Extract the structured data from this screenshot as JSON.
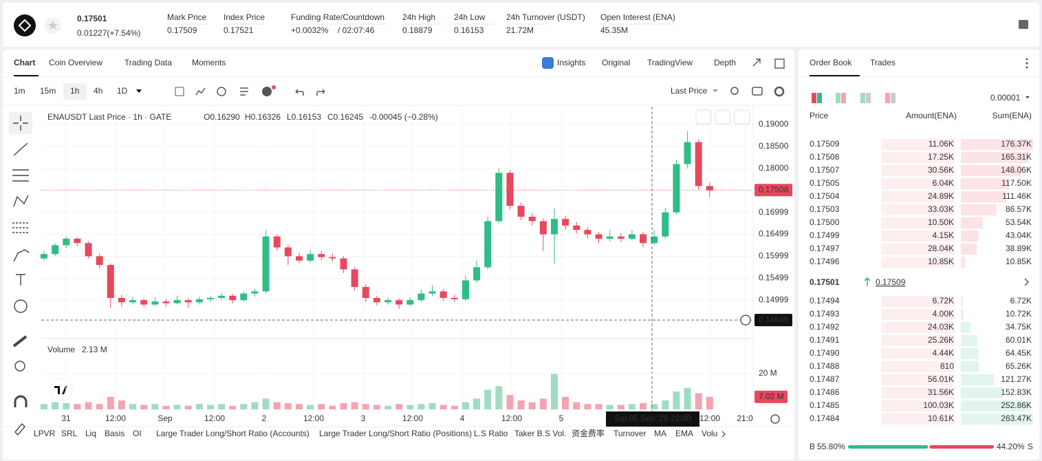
{
  "header": {
    "price": "0.17501",
    "change": "0.01227(+7.54%)",
    "stats": [
      {
        "label": "Mark Price",
        "value": "0.17509"
      },
      {
        "label": "Index Price",
        "value": "0.17521"
      },
      {
        "label": "Funding Rate/Countdown",
        "value": "+0.0032%",
        "extra": "/ 02:07:46"
      },
      {
        "label": "24h High",
        "value": "0.18879"
      },
      {
        "label": "24h Low",
        "value": "0.16153"
      },
      {
        "label": "24h Turnover (USDT)",
        "value": "21.72M"
      },
      {
        "label": "Open Interest (ENA)",
        "value": "45.35M"
      }
    ]
  },
  "tabs": [
    "Chart",
    "Coin Overview",
    "Trading Data",
    "Moments"
  ],
  "views": [
    "Insights",
    "Original",
    "TradingView",
    "Depth"
  ],
  "intervals": [
    "1m",
    "15m",
    "1h",
    "4h",
    "1D"
  ],
  "price_source": "Last Price",
  "price_chart": {
    "type": "candlestick",
    "legend": {
      "symbol": "ENAUSDT Last Price · 1h · GATE",
      "open": "O0.16290",
      "high": "H0.16326",
      "low": "L0.16153",
      "close": "C0.16245",
      "change": "-0.00045 (−0.28%)"
    },
    "ylim": [
      0.14125,
      0.1933
    ],
    "yticks": [
      {
        "value": 0.19,
        "label": "0.19000"
      },
      {
        "value": 0.185,
        "label": "0.18500"
      },
      {
        "value": 0.18,
        "label": "0.18000"
      },
      0.16999,
      0.16499,
      0.15999,
      0.15499,
      0.14999
    ],
    "last_price": {
      "value": 0.17508,
      "label": "0.17508"
    },
    "cursor_price": 0.14546,
    "cursor_time": "Sat 05 Sep '26   22:00",
    "xlim": [
      0,
      172.5
    ],
    "xticks": [
      {
        "value": 6,
        "label": "31"
      },
      {
        "value": 18,
        "label": "12:00"
      },
      {
        "value": 30,
        "label": "Sep"
      },
      {
        "value": 42,
        "label": "12:00"
      },
      {
        "value": 54,
        "label": "2"
      },
      {
        "value": 66,
        "label": "12:00"
      },
      {
        "value": 78,
        "label": "3"
      },
      {
        "value": 90,
        "label": "12:00"
      },
      {
        "value": 102,
        "label": "4"
      },
      {
        "value": 114,
        "label": "12:00"
      },
      {
        "value": 126,
        "label": "5"
      },
      {
        "value": 162,
        "label": "12:00"
      },
      {
        "value": 170.5,
        "label": "21:0"
      }
    ],
    "candles": [
      [
        0.1595,
        0.1612,
        0.159,
        0.1605
      ],
      [
        0.1605,
        0.163,
        0.16,
        0.1625
      ],
      [
        0.1625,
        0.1645,
        0.1618,
        0.164
      ],
      [
        0.164,
        0.1643,
        0.1622,
        0.163
      ],
      [
        0.163,
        0.1634,
        0.1595,
        0.16
      ],
      [
        0.16,
        0.1606,
        0.1572,
        0.158
      ],
      [
        0.158,
        0.1584,
        0.1482,
        0.1505
      ],
      [
        0.1505,
        0.1512,
        0.1486,
        0.1495
      ],
      [
        0.1495,
        0.1508,
        0.149,
        0.15
      ],
      [
        0.15,
        0.1504,
        0.1484,
        0.149
      ],
      [
        0.149,
        0.1506,
        0.1486,
        0.1497
      ],
      [
        0.1497,
        0.1502,
        0.1485,
        0.1493
      ],
      [
        0.1493,
        0.151,
        0.149,
        0.15
      ],
      [
        0.15,
        0.1504,
        0.1483,
        0.1495
      ],
      [
        0.1495,
        0.1508,
        0.149,
        0.1502
      ],
      [
        0.1502,
        0.151,
        0.1496,
        0.1505
      ],
      [
        0.1505,
        0.1516,
        0.15,
        0.151
      ],
      [
        0.151,
        0.1514,
        0.1492,
        0.15
      ],
      [
        0.15,
        0.152,
        0.1496,
        0.1515
      ],
      [
        0.1515,
        0.1526,
        0.1508,
        0.152
      ],
      [
        0.152,
        0.166,
        0.1516,
        0.1645
      ],
      [
        0.1645,
        0.165,
        0.1612,
        0.162
      ],
      [
        0.162,
        0.1626,
        0.158,
        0.16
      ],
      [
        0.16,
        0.1608,
        0.1584,
        0.159
      ],
      [
        0.159,
        0.1614,
        0.1586,
        0.1605
      ],
      [
        0.1605,
        0.1612,
        0.1592,
        0.1598
      ],
      [
        0.1598,
        0.1606,
        0.1588,
        0.1595
      ],
      [
        0.1595,
        0.16,
        0.1562,
        0.157
      ],
      [
        0.157,
        0.1576,
        0.1522,
        0.153
      ],
      [
        0.153,
        0.1536,
        0.1496,
        0.1505
      ],
      [
        0.1505,
        0.151,
        0.1488,
        0.1495
      ],
      [
        0.1495,
        0.1506,
        0.149,
        0.15
      ],
      [
        0.15,
        0.1504,
        0.148,
        0.149
      ],
      [
        0.149,
        0.1506,
        0.1486,
        0.15
      ],
      [
        0.15,
        0.1524,
        0.1496,
        0.1515
      ],
      [
        0.1515,
        0.1534,
        0.151,
        0.152
      ],
      [
        0.152,
        0.1526,
        0.1498,
        0.1505
      ],
      [
        0.1505,
        0.1512,
        0.1496,
        0.1502
      ],
      [
        0.1502,
        0.1556,
        0.1498,
        0.1545
      ],
      [
        0.1545,
        0.159,
        0.154,
        0.1575
      ],
      [
        0.1575,
        0.169,
        0.157,
        0.168
      ],
      [
        0.168,
        0.18,
        0.1675,
        0.179
      ],
      [
        0.179,
        0.1796,
        0.1705,
        0.1715
      ],
      [
        0.1715,
        0.1722,
        0.1682,
        0.169
      ],
      [
        0.169,
        0.1698,
        0.167,
        0.168
      ],
      [
        0.168,
        0.1686,
        0.1612,
        0.165
      ],
      [
        0.165,
        0.171,
        0.1582,
        0.1685
      ],
      [
        0.1685,
        0.1692,
        0.166,
        0.167
      ],
      [
        0.167,
        0.1678,
        0.1652,
        0.166
      ],
      [
        0.166,
        0.1666,
        0.164,
        0.165
      ],
      [
        0.165,
        0.1655,
        0.163,
        0.164
      ],
      [
        0.164,
        0.166,
        0.1634,
        0.1645
      ],
      [
        0.1645,
        0.1652,
        0.1632,
        0.164
      ],
      [
        0.164,
        0.166,
        0.1636,
        0.165
      ],
      [
        0.165,
        0.1655,
        0.162,
        0.163
      ],
      [
        0.163,
        0.166,
        0.1626,
        0.1645
      ],
      [
        0.1645,
        0.171,
        0.164,
        0.17
      ],
      [
        0.17,
        0.182,
        0.1695,
        0.181
      ],
      [
        0.181,
        0.1885,
        0.18,
        0.186
      ],
      [
        0.186,
        0.1866,
        0.1752,
        0.176
      ],
      [
        0.176,
        0.1768,
        0.1735,
        0.175
      ]
    ],
    "volume": {
      "title": "Volume",
      "current": "2.13 M",
      "ylim": [
        0,
        21.9
      ],
      "yticks": [
        {
          "value": 20,
          "label": "20 M"
        }
      ],
      "values": [
        3,
        4,
        3.5,
        3,
        4,
        3,
        7,
        5,
        3,
        2.5,
        3,
        2,
        2.5,
        2,
        3,
        2.5,
        3,
        2,
        3,
        4,
        6,
        4,
        3.5,
        3,
        2.5,
        3,
        2,
        3.5,
        4,
        3,
        2.5,
        2,
        3,
        2.5,
        3,
        3.5,
        2.5,
        2,
        4,
        6,
        11,
        13,
        8,
        5,
        4,
        6,
        20,
        7,
        4,
        3,
        3,
        2.5,
        2.5,
        3,
        3.5,
        3,
        5,
        10,
        12,
        9,
        7.02
      ],
      "last": {
        "value": 7.02,
        "label": "7.02 M"
      }
    }
  },
  "indicators": [
    "LPVR",
    "SRL",
    "Liq",
    "Basis",
    "OI",
    "Large Trader Long/Short Ratio (Accounts)",
    "Large Trader Long/Short Ratio (Positions)",
    "L.S Ratio",
    "Taker B.S Vol.",
    "资金费率",
    "Turnover",
    "MA",
    "EMA",
    "Volu"
  ],
  "order_book": {
    "tabs": [
      "Order Book",
      "Trades"
    ],
    "precision": "0.00001",
    "headers": [
      "Price",
      "Amount(ENA)",
      "Sum(ENA)"
    ],
    "asks": [
      {
        "price": "0.17509",
        "amount": {
          "value": 11060,
          "label": "11.06K"
        },
        "sum": {
          "value": 176370,
          "label": "176.37K"
        }
      },
      {
        "price": "0.17508",
        "amount": {
          "value": 17250,
          "label": "17.25K"
        },
        "sum": {
          "value": 165310,
          "label": "165.31K"
        }
      },
      {
        "price": "0.17507",
        "amount": {
          "value": 30560,
          "label": "30.56K"
        },
        "sum": {
          "value": 148060,
          "label": "148.06K"
        }
      },
      {
        "price": "0.17505",
        "amount": {
          "value": 6040,
          "label": "6.04K"
        },
        "sum": {
          "value": 117500,
          "label": "117.50K"
        }
      },
      {
        "price": "0.17504",
        "amount": {
          "value": 24890,
          "label": "24.89K"
        },
        "sum": {
          "value": 111460,
          "label": "111.46K"
        }
      },
      {
        "price": "0.17503",
        "amount": {
          "value": 33030,
          "label": "33.03K"
        },
        "sum": {
          "value": 86570,
          "label": "86.57K"
        }
      },
      {
        "price": "0.17500",
        "amount": {
          "value": 10500,
          "label": "10.50K"
        },
        "sum": {
          "value": 53540,
          "label": "53.54K"
        }
      },
      {
        "price": "0.17499",
        "amount": {
          "value": 4150,
          "label": "4.15K"
        },
        "sum": {
          "value": 43040,
          "label": "43.04K"
        }
      },
      {
        "price": "0.17497",
        "amount": {
          "value": 28040,
          "label": "28.04K"
        },
        "sum": {
          "value": 38890,
          "label": "38.89K"
        }
      },
      {
        "price": "0.17496",
        "amount": {
          "value": 10850,
          "label": "10.85K"
        },
        "sum": {
          "value": 10850,
          "label": "10.85K"
        }
      }
    ],
    "last": "0.17501",
    "mark": "0.17509",
    "bids": [
      {
        "price": "0.17494",
        "amount": {
          "value": 6720,
          "label": "6.72K"
        },
        "sum": {
          "value": 6720,
          "label": "6.72K"
        }
      },
      {
        "price": "0.17493",
        "amount": {
          "value": 4000,
          "label": "4.00K"
        },
        "sum": {
          "value": 10720,
          "label": "10.72K"
        }
      },
      {
        "price": "0.17492",
        "amount": {
          "value": 24030,
          "label": "24.03K"
        },
        "sum": {
          "value": 34750,
          "label": "34.75K"
        }
      },
      {
        "price": "0.17491",
        "amount": {
          "value": 25260,
          "label": "25.26K"
        },
        "sum": {
          "value": 60010,
          "label": "60.01K"
        }
      },
      {
        "price": "0.17490",
        "amount": {
          "value": 4440,
          "label": "4.44K"
        },
        "sum": {
          "value": 64450,
          "label": "64.45K"
        }
      },
      {
        "price": "0.17488",
        "amount": 810,
        "sum": {
          "value": 65260,
          "label": "65.26K"
        }
      },
      {
        "price": "0.17487",
        "amount": {
          "value": 56010,
          "label": "56.01K"
        },
        "sum": {
          "value": 121270,
          "label": "121.27K"
        }
      },
      {
        "price": "0.17486",
        "amount": {
          "value": 31560,
          "label": "31.56K"
        },
        "sum": {
          "value": 152830,
          "label": "152.83K"
        }
      },
      {
        "price": "0.17485",
        "amount": {
          "value": 100030,
          "label": "100.03K"
        },
        "sum": {
          "value": 252860,
          "label": "252.86K"
        }
      },
      {
        "price": "0.17484",
        "amount": {
          "value": 10610,
          "label": "10.61K"
        },
        "sum": {
          "value": 263470,
          "label": "263.47K"
        }
      }
    ],
    "ratio": {
      "buy_label": "B",
      "buy": {
        "value": 55.8,
        "label": "55.80%"
      },
      "sell": {
        "value": 44.2,
        "label": "44.20%"
      },
      "sell_label": "S"
    }
  }
}
